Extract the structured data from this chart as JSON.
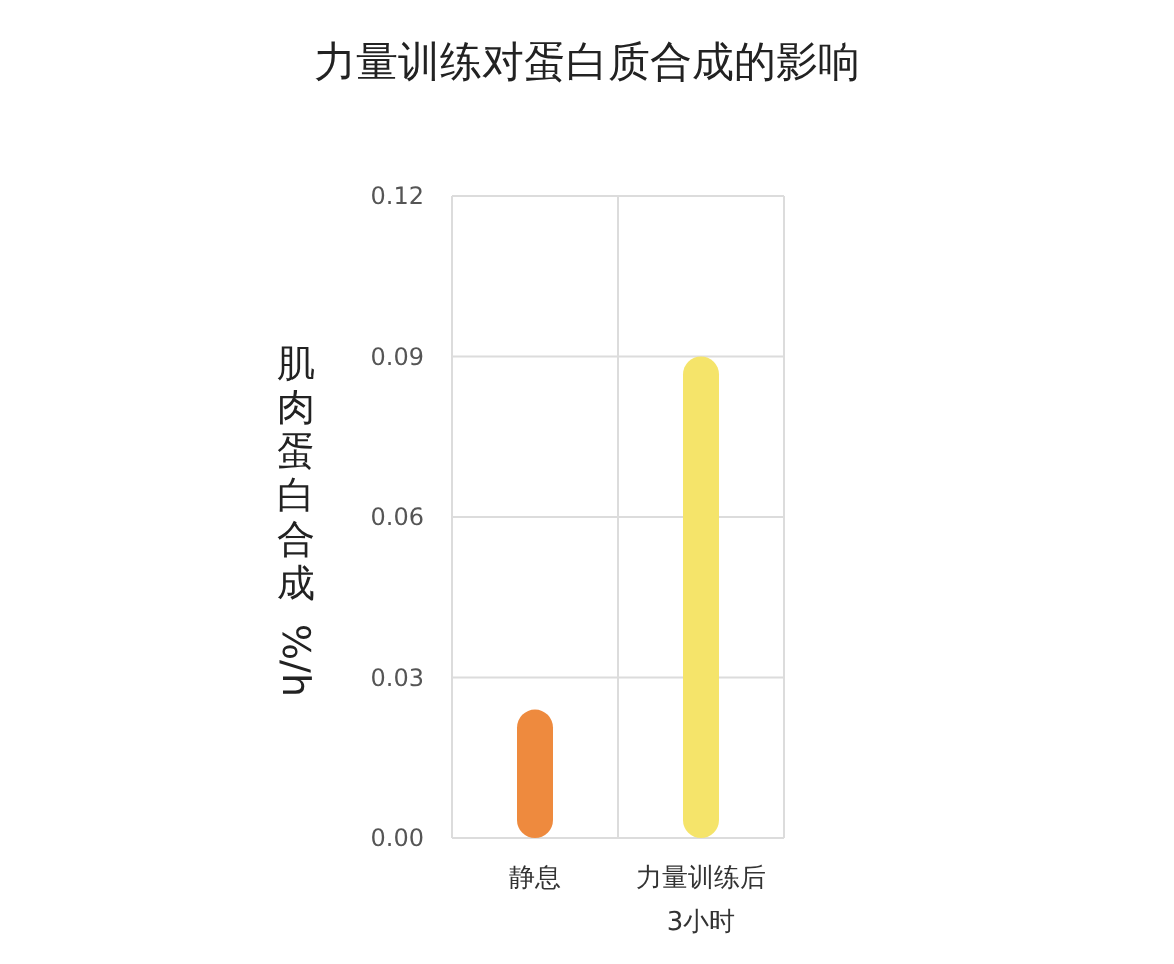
{
  "chart_data": {
    "type": "bar",
    "title": "力量训练对蛋白质合成的影响",
    "ylabel": "肌肉蛋白合成 %/h",
    "categories": [
      "静息",
      "力量训练后\n3小时"
    ],
    "values": [
      0.024,
      0.09
    ],
    "colors": [
      "#ee8a3e",
      "#f5e46a"
    ],
    "ylim": [
      0,
      0.12
    ],
    "yticks": [
      {
        "value": 0,
        "label": "0.00"
      },
      {
        "value": 0.03,
        "label": "0.03"
      },
      {
        "value": 0.06,
        "label": "0.06"
      },
      {
        "value": 0.09,
        "label": "0.09"
      },
      {
        "value": 0.12,
        "label": "0.12"
      }
    ],
    "grid": true
  }
}
